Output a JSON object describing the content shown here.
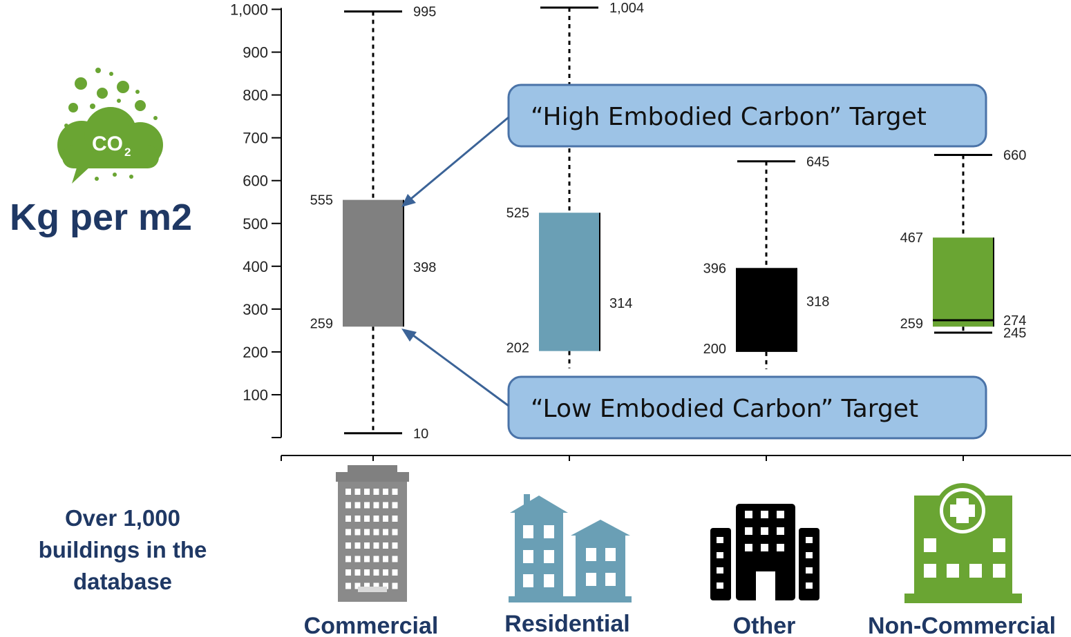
{
  "unit_label": "Kg per m2",
  "co2_icon_text": "CO",
  "co2_icon_subscript": "2",
  "note": "Over 1,000 buildings in the database",
  "colors": {
    "commercial": "#808080",
    "residential": "#6a9fb5",
    "other": "#000000",
    "noncommercial": "#6aa533",
    "callout_fill": "#9dc3e6",
    "callout_border": "#4a73a8",
    "arrow": "#3b6397",
    "icon_green": "#6aa533",
    "text_navy": "#1f3864"
  },
  "callouts": {
    "high": "“High Embodied Carbon” Target",
    "low": "“Low Embodied Carbon” Target"
  },
  "chart_data": {
    "type": "box",
    "y_ticks": [
      {
        "value": 1000,
        "label": "1,000"
      },
      {
        "value": 900,
        "label": "900"
      },
      {
        "value": 800,
        "label": "800"
      },
      {
        "value": 700,
        "label": "700"
      },
      {
        "value": 600,
        "label": "600"
      },
      {
        "value": 500,
        "label": "500"
      },
      {
        "value": 400,
        "label": "400"
      },
      {
        "value": 300,
        "label": "300"
      },
      {
        "value": 200,
        "label": "200"
      },
      {
        "value": 100,
        "label": "100"
      }
    ],
    "ylim": [
      0,
      1000
    ],
    "grid": false,
    "series": [
      {
        "category": "Commercial",
        "color": "#808080",
        "min": 10,
        "q1": 259,
        "median": 398,
        "q3": 555,
        "max": 995,
        "labels": {
          "min": "10",
          "q1": "259",
          "median": "398",
          "q3": "555",
          "max": "995"
        }
      },
      {
        "category": "Residential",
        "color": "#6a9fb5",
        "min": 202,
        "q1": 202,
        "median": 314,
        "q3": 525,
        "max": 1004,
        "labels": {
          "q1": "202",
          "median": "314",
          "q3": "525",
          "max": "1,004"
        }
      },
      {
        "category": "Other",
        "color": "#000000",
        "min": 200,
        "q1": 200,
        "median": 318,
        "q3": 396,
        "max": 645,
        "labels": {
          "q1": "200",
          "median": "318",
          "q3": "396",
          "max": "645"
        }
      },
      {
        "category": "Non-Commercial",
        "color": "#6aa533",
        "min": 245,
        "q1": 259,
        "median": 274,
        "q3": 467,
        "max": 660,
        "labels": {
          "min": "245",
          "q1": "259",
          "median": "274",
          "q3": "467",
          "max": "660"
        }
      }
    ]
  }
}
